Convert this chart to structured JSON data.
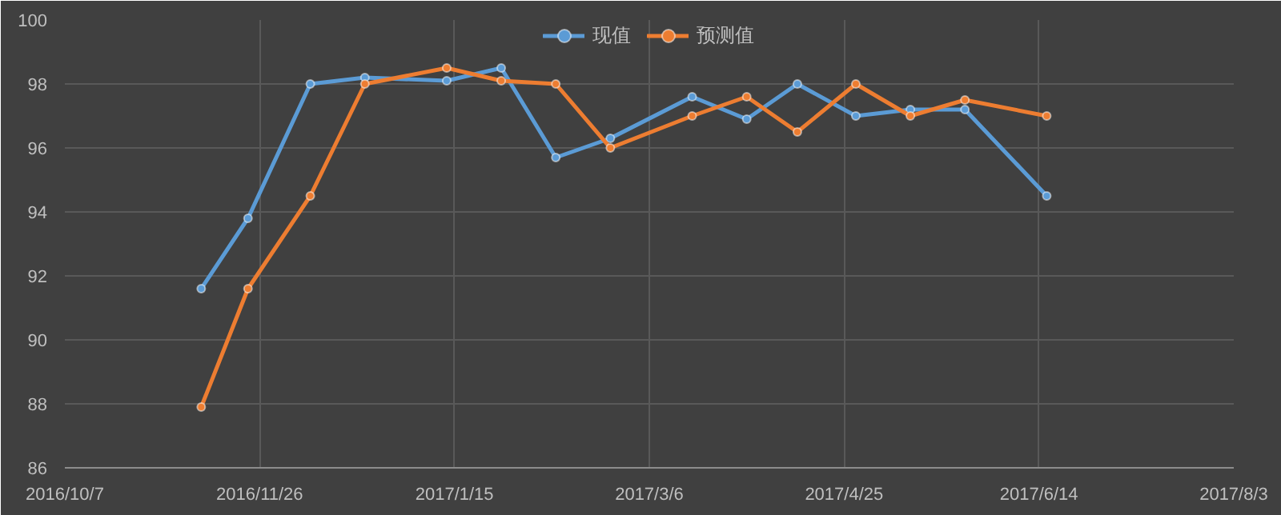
{
  "chart_data": {
    "type": "line",
    "x": [
      "2016-11-11",
      "2016-11-23",
      "2016-12-09",
      "2016-12-23",
      "2017-01-13",
      "2017-01-27",
      "2017-02-10",
      "2017-02-24",
      "2017-03-17",
      "2017-03-31",
      "2017-04-13",
      "2017-04-28",
      "2017-05-12",
      "2017-05-26",
      "2017-06-16"
    ],
    "series": [
      {
        "name": "现值",
        "color": "#5b9bd5",
        "values": [
          91.6,
          93.8,
          98.0,
          98.2,
          98.1,
          98.5,
          95.7,
          96.3,
          97.6,
          96.9,
          98.0,
          97.0,
          97.2,
          97.2,
          94.5
        ]
      },
      {
        "name": "预测值",
        "color": "#ed7d31",
        "values": [
          87.9,
          91.6,
          94.5,
          98.0,
          98.5,
          98.1,
          98.0,
          96.0,
          97.0,
          97.6,
          96.5,
          98.0,
          97.0,
          97.5,
          97.0
        ]
      }
    ],
    "xlim": [
      "2016-10-07",
      "2017-08-03"
    ],
    "xticks": [
      {
        "value": "2016-10-07",
        "label": "2016/10/7"
      },
      {
        "value": "2016-11-26",
        "label": "2016/11/26"
      },
      {
        "value": "2017-01-15",
        "label": "2017/1/15"
      },
      {
        "value": "2017-03-06",
        "label": "2017/3/6"
      },
      {
        "value": "2017-04-25",
        "label": "2017/4/25"
      },
      {
        "value": "2017-06-14",
        "label": "2017/6/14"
      },
      {
        "value": "2017-08-03",
        "label": "2017/8/3"
      }
    ],
    "ylim": [
      86,
      100
    ],
    "yticks": [
      86,
      88,
      90,
      92,
      94,
      96,
      98,
      100
    ],
    "grid": true,
    "legend": "top",
    "marker": "circle",
    "line_style": "solid"
  }
}
